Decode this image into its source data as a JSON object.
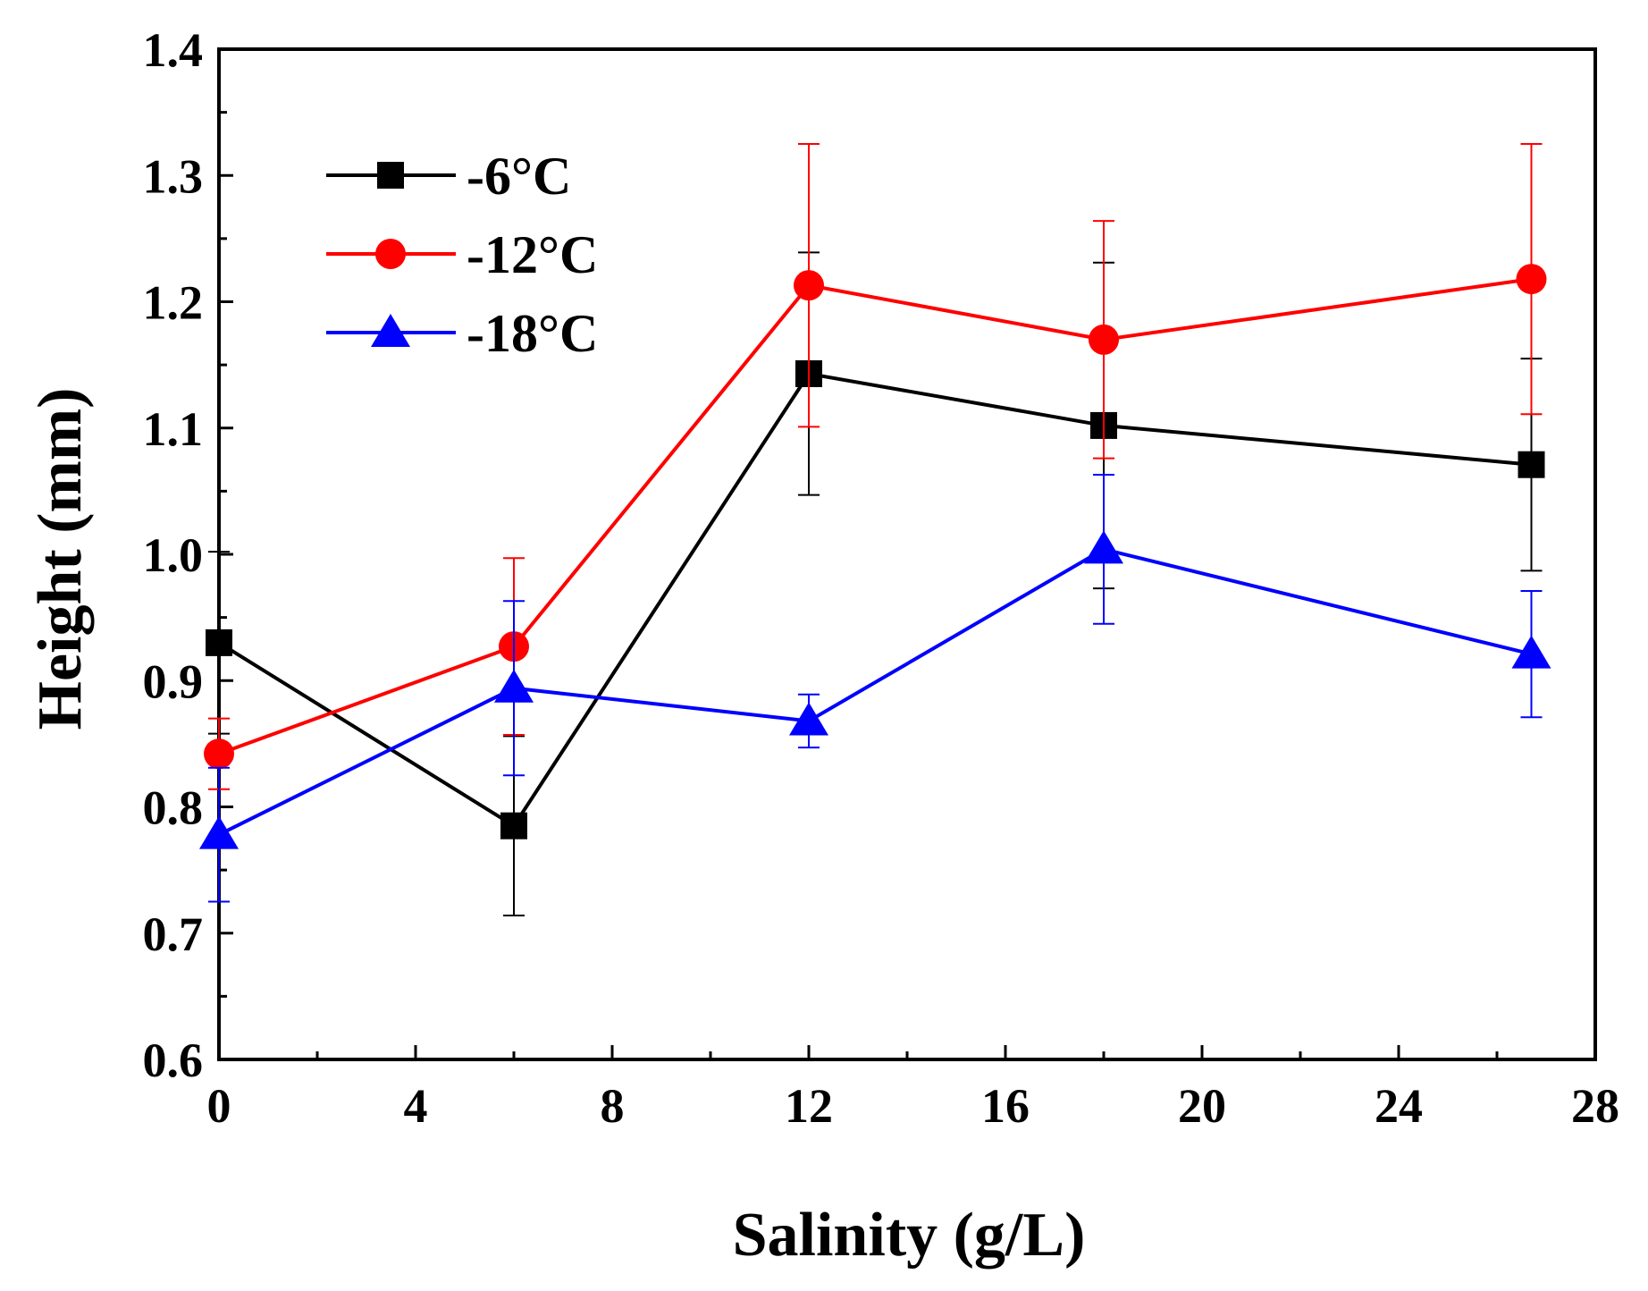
{
  "chart_data": {
    "type": "line",
    "xlabel": "Salinity (g/L)",
    "ylabel": "Height (mm)",
    "xlim": [
      0,
      28
    ],
    "ylim": [
      0.6,
      1.4
    ],
    "x_ticks": [
      0,
      4,
      8,
      12,
      16,
      20,
      24,
      28
    ],
    "x_tick_labels": [
      "0",
      "4",
      "8",
      "12",
      "16",
      "20",
      "24",
      "28"
    ],
    "y_ticks": [
      0.6,
      0.7,
      0.8,
      0.9,
      1.0,
      1.1,
      1.2,
      1.3,
      1.4
    ],
    "y_tick_labels": [
      "0.6",
      "0.7",
      "0.8",
      "0.9",
      "1.0",
      "1.1",
      "1.2",
      "1.3",
      "1.4"
    ],
    "grid": false,
    "legend_position": "top-left",
    "series": [
      {
        "name": "-6°C",
        "color": "#000000",
        "marker": "square",
        "x": [
          0,
          6,
          12,
          18,
          26.7
        ],
        "y": [
          0.93,
          0.785,
          1.143,
          1.102,
          1.071
        ],
        "error": [
          0.072,
          0.071,
          0.096,
          0.129,
          0.084
        ]
      },
      {
        "name": "-12°C",
        "color": "#ff0000",
        "marker": "circle",
        "x": [
          0,
          6,
          12,
          18,
          26.7
        ],
        "y": [
          0.842,
          0.927,
          1.213,
          1.17,
          1.218
        ],
        "error": [
          0.028,
          0.07,
          0.112,
          0.094,
          0.107
        ]
      },
      {
        "name": "-18°C",
        "color": "#0000ff",
        "marker": "triangle",
        "x": [
          0,
          6,
          12,
          18,
          26.7
        ],
        "y": [
          0.778,
          0.894,
          0.868,
          1.004,
          0.921
        ],
        "error": [
          0.053,
          0.069,
          0.021,
          0.059,
          0.05
        ]
      }
    ]
  }
}
